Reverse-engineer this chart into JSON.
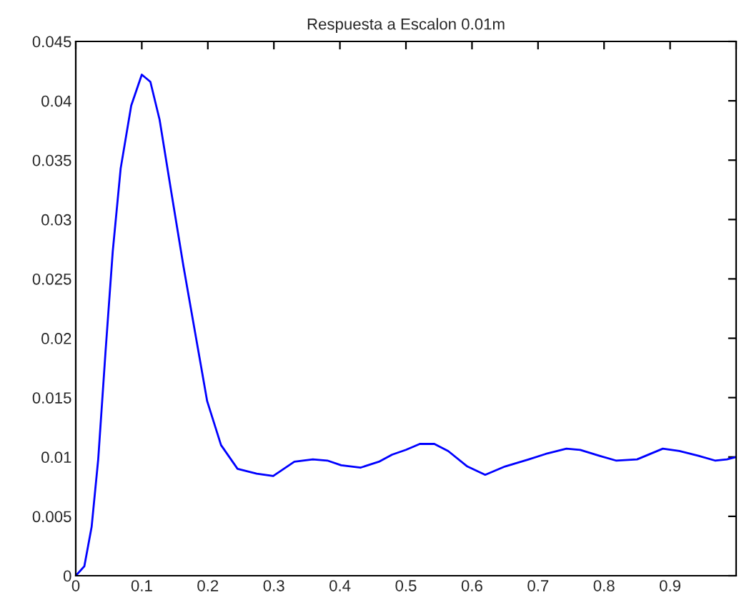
{
  "chart_data": {
    "type": "line",
    "title": "Respuesta a Escalon 0.01m",
    "x": [
      0,
      0.013,
      0.024,
      0.034,
      0.045,
      0.056,
      0.068,
      0.084,
      0.1,
      0.113,
      0.127,
      0.145,
      0.163,
      0.181,
      0.199,
      0.22,
      0.245,
      0.274,
      0.299,
      0.331,
      0.359,
      0.381,
      0.402,
      0.431,
      0.459,
      0.479,
      0.5,
      0.521,
      0.543,
      0.564,
      0.593,
      0.62,
      0.65,
      0.686,
      0.714,
      0.743,
      0.764,
      0.793,
      0.818,
      0.85,
      0.889,
      0.914,
      0.943,
      0.968,
      0.986,
      1.0
    ],
    "series": [
      {
        "color": "#0000ff",
        "values": [
          0,
          0.0008,
          0.0041,
          0.0098,
          0.0188,
          0.0273,
          0.0343,
          0.0396,
          0.0422,
          0.0416,
          0.0384,
          0.0322,
          0.0261,
          0.0204,
          0.0147,
          0.011,
          0.009,
          0.0086,
          0.0084,
          0.0096,
          0.0098,
          0.0097,
          0.0093,
          0.0091,
          0.0096,
          0.0102,
          0.0106,
          0.0111,
          0.0111,
          0.0105,
          0.0092,
          0.0085,
          0.0092,
          0.0098,
          0.0103,
          0.0107,
          0.0106,
          0.0101,
          0.0097,
          0.0098,
          0.0107,
          0.0105,
          0.0101,
          0.0097,
          0.0098,
          0.01
        ]
      }
    ],
    "xlim": [
      0,
      1
    ],
    "xticks": [
      0,
      0.1,
      0.2,
      0.3,
      0.4,
      0.5,
      0.6,
      0.7,
      0.8,
      0.9,
      {
        "value": 1,
        "label": null
      }
    ],
    "ylim": [
      0,
      0.045
    ],
    "yticks": [
      0,
      0.005,
      0.01,
      0.015,
      0.02,
      0.025,
      0.03,
      0.035,
      0.04,
      0.045
    ],
    "marker": "none",
    "line_style": "solid"
  }
}
